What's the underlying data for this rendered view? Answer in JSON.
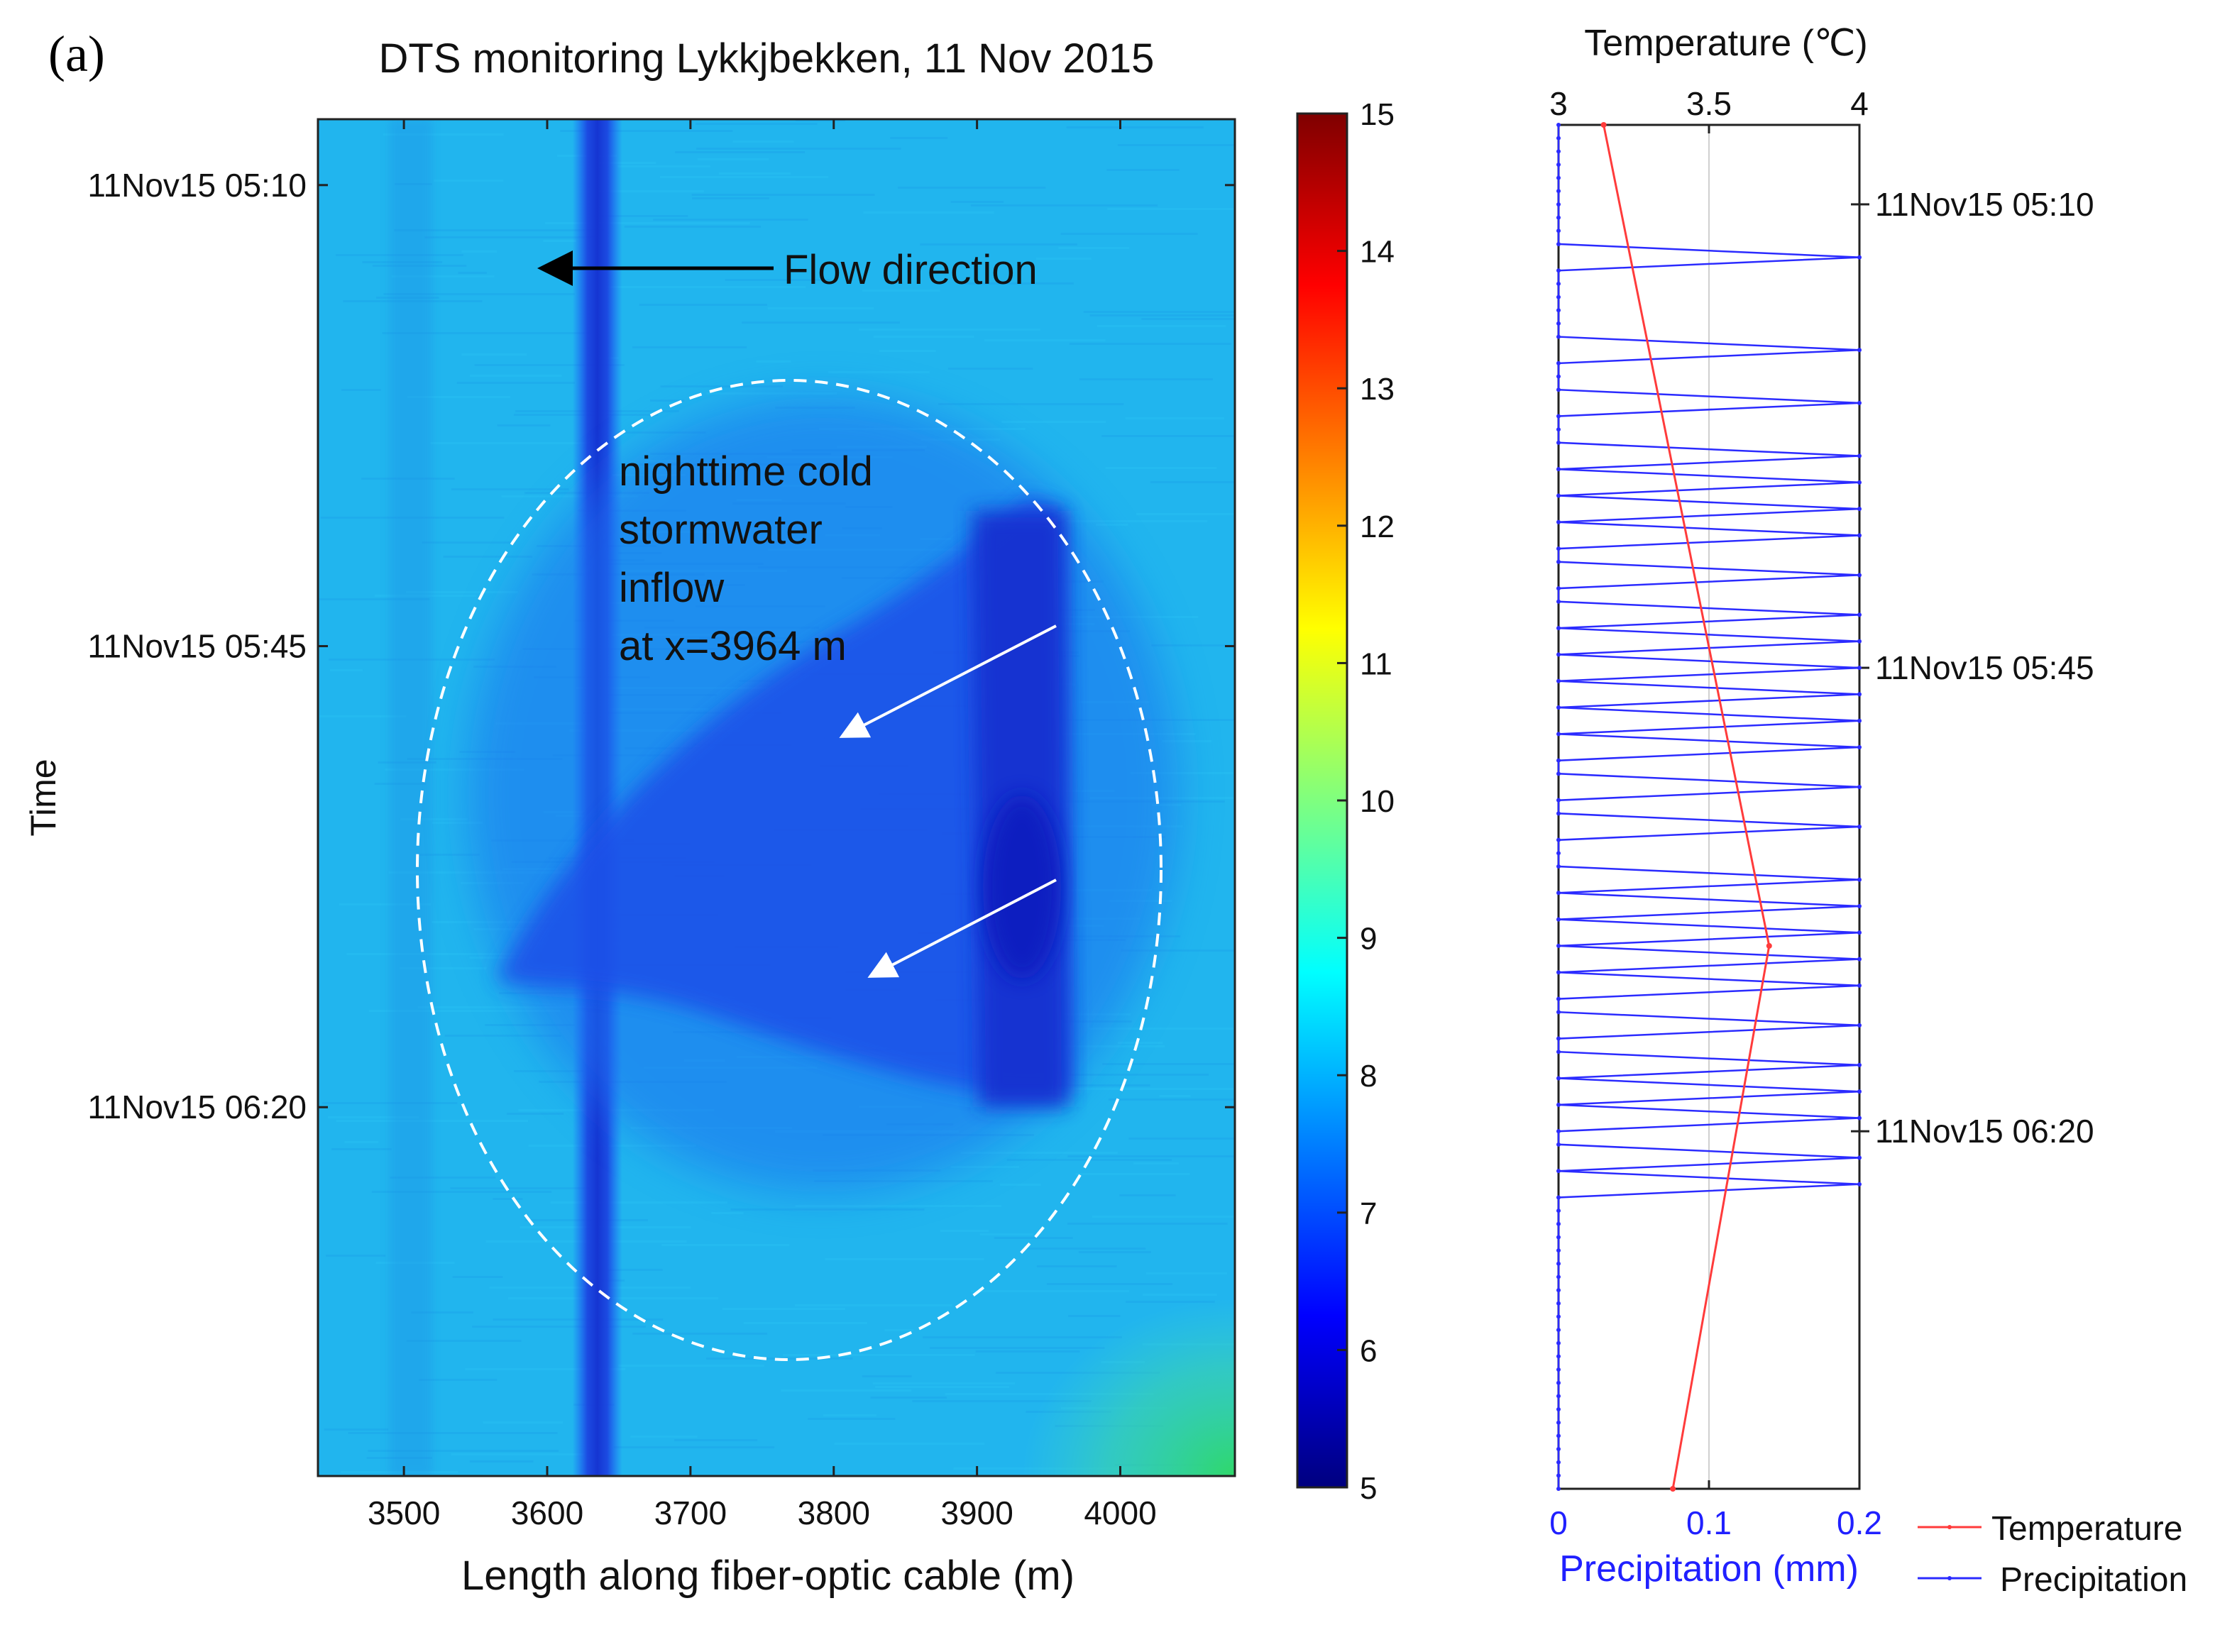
{
  "panel_label": "(a)",
  "chart_data": [
    {
      "type": "heatmap",
      "title": "DTS monitoring Lykkjbekken, 11 Nov 2015",
      "xlabel": "Length along fiber-optic cable (m)",
      "ylabel": "Time",
      "xlim": [
        3440,
        4080
      ],
      "x_ticks": [
        3500,
        3600,
        3700,
        3800,
        3900,
        4000
      ],
      "time_ticks": [
        "11Nov15 05:10",
        "11Nov15 05:45",
        "11Nov15 06:20"
      ],
      "time_ticks_minutes": [
        10,
        45,
        80
      ],
      "time_range_minutes": [
        5,
        108
      ],
      "colorbar": {
        "min": 5,
        "max": 15,
        "ticks": [
          5,
          6,
          7,
          8,
          9,
          10,
          11,
          12,
          13,
          14,
          15
        ],
        "colormap": [
          "#00007f",
          "#0000ff",
          "#007fff",
          "#00ffff",
          "#7fff7f",
          "#ffff00",
          "#ff7f00",
          "#ff0000",
          "#7f0000"
        ]
      },
      "background_temperature": 8.0,
      "features": {
        "cold_band_x": 3635,
        "cold_band_temperature": 6.2,
        "inflow_x": 3964,
        "inflow_temperature": 6.5
      },
      "annotations": {
        "flow_direction": "Flow direction",
        "inflow_text": [
          "nighttime cold",
          "stormwater",
          "inflow",
          "at x=3964 m"
        ]
      }
    },
    {
      "type": "line",
      "top_axis_label": "Temperature (℃)",
      "top_xlim": [
        3,
        4
      ],
      "top_ticks": [
        "3",
        "3.5",
        "4"
      ],
      "bottom_axis_label": "Precipitation (mm)",
      "bottom_xlim": [
        0,
        0.2
      ],
      "bottom_ticks": [
        "0",
        "0.1",
        "0.2"
      ],
      "time_ticks": [
        "11Nov15 05:10",
        "11Nov15 05:45",
        "11Nov15 06:20"
      ],
      "time_ticks_minutes": [
        10,
        45,
        80
      ],
      "time_range_minutes": [
        4,
        107
      ],
      "legend": [
        {
          "name": "Temperature",
          "color": "#ff3b3b"
        },
        {
          "name": "Precipitation",
          "color": "#2b2bff"
        }
      ],
      "series": [
        {
          "name": "Temperature",
          "time_minutes": [
            4,
            66,
            107
          ],
          "values": [
            3.15,
            3.7,
            3.38
          ]
        },
        {
          "name": "Precipitation",
          "time_minutes": [
            4,
            5,
            6,
            7,
            8,
            9,
            10,
            11,
            12,
            13,
            14,
            15,
            16,
            17,
            18,
            19,
            20,
            21,
            22,
            23,
            24,
            25,
            26,
            27,
            28,
            29,
            30,
            31,
            32,
            33,
            34,
            35,
            36,
            37,
            38,
            39,
            40,
            41,
            42,
            43,
            44,
            45,
            46,
            47,
            48,
            49,
            50,
            51,
            52,
            53,
            54,
            55,
            56,
            57,
            58,
            59,
            60,
            61,
            62,
            63,
            64,
            65,
            66,
            67,
            68,
            69,
            70,
            71,
            72,
            73,
            74,
            75,
            76,
            77,
            78,
            79,
            80,
            81,
            82,
            83,
            84,
            85,
            86,
            87,
            88,
            89,
            90,
            91,
            92,
            93,
            94,
            95,
            96,
            97,
            98,
            99,
            100,
            101,
            102,
            103,
            104,
            105,
            106,
            107
          ],
          "values": [
            0,
            0,
            0,
            0,
            0,
            0,
            0,
            0,
            0,
            0,
            0.2,
            0,
            0,
            0,
            0,
            0,
            0,
            0.2,
            0,
            0,
            0,
            0.2,
            0,
            0,
            0,
            0.2,
            0,
            0.2,
            0,
            0.2,
            0,
            0.2,
            0,
            0,
            0.2,
            0,
            0,
            0.2,
            0,
            0.2,
            0,
            0.2,
            0,
            0.2,
            0,
            0.2,
            0,
            0.2,
            0,
            0,
            0.2,
            0,
            0,
            0.2,
            0,
            0,
            0,
            0.2,
            0,
            0.2,
            0,
            0.2,
            0,
            0.2,
            0,
            0.2,
            0,
            0,
            0.2,
            0,
            0,
            0.2,
            0,
            0.2,
            0,
            0.2,
            0,
            0,
            0.2,
            0,
            0.2,
            0,
            0,
            0,
            0,
            0,
            0,
            0,
            0,
            0,
            0,
            0,
            0,
            0,
            0,
            0,
            0,
            0,
            0,
            0,
            0,
            0,
            0,
            0,
            0,
            0
          ]
        }
      ]
    }
  ]
}
